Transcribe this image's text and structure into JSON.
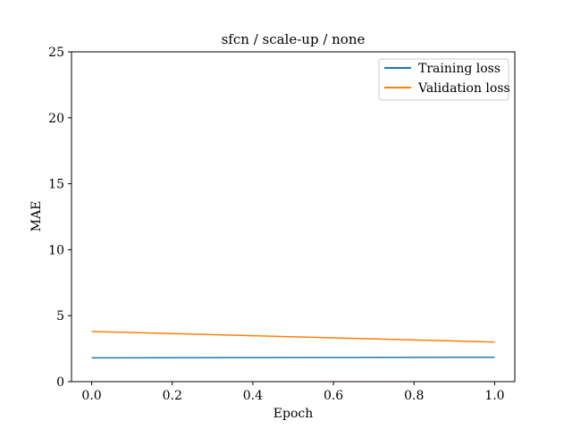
{
  "chart_data": {
    "type": "line",
    "title": "sfcn / scale-up / none",
    "xlabel": "Epoch",
    "ylabel": "MAE",
    "x": [
      0.0,
      1.0
    ],
    "xlim": [
      -0.05,
      1.05
    ],
    "ylim": [
      0,
      25
    ],
    "xticks": [
      0.0,
      0.2,
      0.4,
      0.6,
      0.8,
      1.0
    ],
    "xtick_labels": [
      "0.0",
      "0.2",
      "0.4",
      "0.6",
      "0.8",
      "1.0"
    ],
    "yticks": [
      0,
      5,
      10,
      15,
      20,
      25
    ],
    "ytick_labels": [
      "0",
      "5",
      "10",
      "15",
      "20",
      "25"
    ],
    "grid": false,
    "legend_position": "top-right",
    "series": [
      {
        "name": "Training loss",
        "color": "#1f77b4",
        "values": [
          1.8,
          1.85
        ]
      },
      {
        "name": "Validation loss",
        "color": "#ff7f0e",
        "values": [
          3.8,
          3.0
        ]
      }
    ]
  }
}
